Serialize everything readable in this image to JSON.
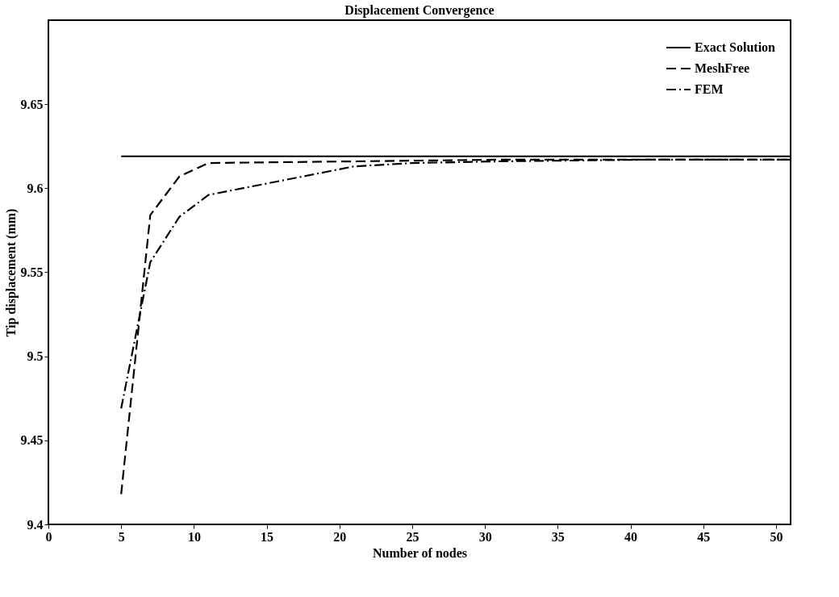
{
  "chart_data": {
    "type": "line",
    "title": "Displacement Convergence",
    "xlabel": "Number of nodes",
    "ylabel": "Tip displacement (mm)",
    "xlim": [
      0,
      51
    ],
    "xticks": [
      0,
      5,
      10,
      15,
      20,
      25,
      30,
      35,
      40,
      45,
      50
    ],
    "ylim": [
      9.4,
      9.7
    ],
    "yticks": [
      9.4,
      9.45,
      9.5,
      9.55,
      9.6,
      9.65
    ],
    "grid": false,
    "legend": "top right",
    "marker": "none",
    "series": [
      {
        "name": "Exact Solution",
        "color": "#000000",
        "line_style": "solid",
        "x": [
          5,
          51
        ],
        "values": [
          9.619,
          9.619
        ]
      },
      {
        "name": "MeshFree",
        "color": "#000000",
        "line_style": "dashed",
        "x": [
          5,
          7,
          9,
          11,
          21,
          31,
          41,
          51
        ],
        "values": [
          9.418,
          9.584,
          9.607,
          9.615,
          9.616,
          9.617,
          9.617,
          9.617
        ]
      },
      {
        "name": "FEM",
        "color": "#000000",
        "line_style": "dashdot",
        "x": [
          5,
          7,
          9,
          11,
          21,
          25,
          31,
          41,
          51
        ],
        "values": [
          9.469,
          9.556,
          9.583,
          9.596,
          9.613,
          9.615,
          9.616,
          9.617,
          9.617
        ]
      }
    ]
  }
}
